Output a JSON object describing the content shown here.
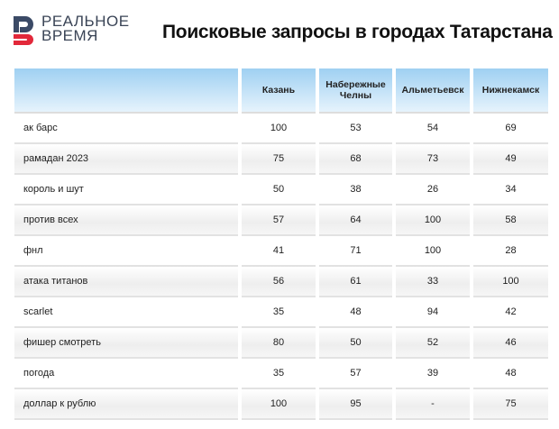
{
  "logo": {
    "line1": "РЕАЛЬНОЕ",
    "line2": "ВРЕМЯ",
    "colors": {
      "blue": "#3b4a66",
      "red": "#e2283a"
    }
  },
  "title": "Поисковые запросы в городах Татарстана",
  "table": {
    "headers": [
      "",
      "Казань",
      "Набережные Челны",
      "Альметьевск",
      "Нижнекамск"
    ],
    "rows": [
      {
        "query": "ак барс",
        "values": [
          "100",
          "53",
          "54",
          "69"
        ]
      },
      {
        "query": "рамадан 2023",
        "values": [
          "75",
          "68",
          "73",
          "49"
        ]
      },
      {
        "query": "король и шут",
        "values": [
          "50",
          "38",
          "26",
          "34"
        ]
      },
      {
        "query": "против всех",
        "values": [
          "57",
          "64",
          "100",
          "58"
        ]
      },
      {
        "query": "фнл",
        "values": [
          "41",
          "71",
          "100",
          "28"
        ]
      },
      {
        "query": "атака титанов",
        "values": [
          "56",
          "61",
          "33",
          "100"
        ]
      },
      {
        "query": "scarlet",
        "values": [
          "35",
          "48",
          "94",
          "42"
        ]
      },
      {
        "query": "фишер смотреть",
        "values": [
          "80",
          "50",
          "52",
          "46"
        ]
      },
      {
        "query": "погода",
        "values": [
          "35",
          "57",
          "39",
          "48"
        ]
      },
      {
        "query": "доллар к рублю",
        "values": [
          "100",
          "95",
          "-",
          "75"
        ]
      }
    ]
  }
}
